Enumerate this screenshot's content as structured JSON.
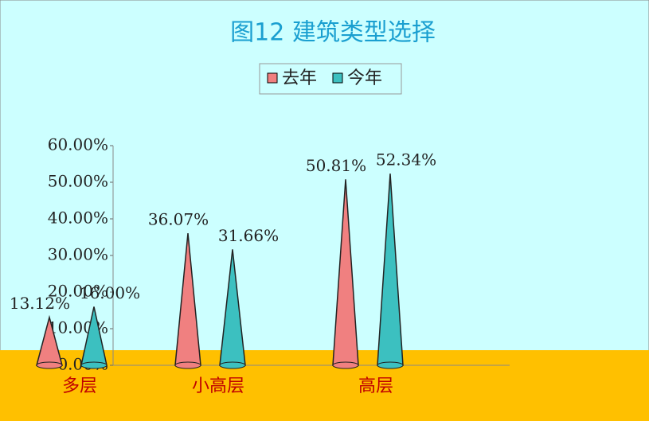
{
  "chart_data": {
    "type": "cone",
    "title": "图12 建筑类型选择",
    "categories": [
      "多层",
      "小高层",
      "高层"
    ],
    "series": [
      {
        "name": "去年",
        "color": "#f08080",
        "values": [
          13.12,
          36.07,
          50.81
        ],
        "value_labels": [
          "13.12%",
          "36.07%",
          "50.81%"
        ]
      },
      {
        "name": "今年",
        "color": "#3cc0c0",
        "values": [
          16.0,
          31.66,
          52.34
        ],
        "value_labels": [
          "16.00%",
          "31.66%",
          "52.34%"
        ]
      }
    ],
    "ylim": [
      0,
      60
    ],
    "yticks": [
      {
        "value": 0,
        "label": "0.00%"
      },
      {
        "value": 10,
        "label": "10.00%"
      },
      {
        "value": 20,
        "label": "20.00%"
      },
      {
        "value": 30,
        "label": "30.00%"
      },
      {
        "value": 40,
        "label": "40.00%"
      },
      {
        "value": 50,
        "label": "50.00%"
      },
      {
        "value": 60,
        "label": "60.00%"
      }
    ]
  }
}
